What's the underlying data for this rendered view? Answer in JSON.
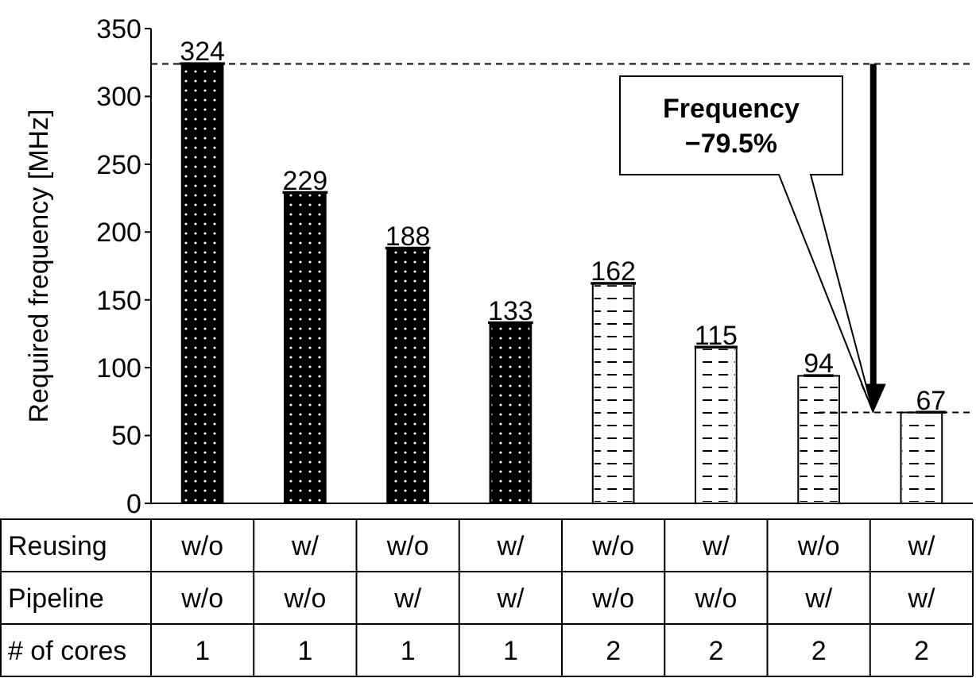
{
  "chart_data": {
    "type": "bar",
    "ylabel": "Required frequency [MHz]",
    "xlabel": "Reusing\nPipeline\n# of cores",
    "categories": [
      "w/o\nw/o\n1",
      "w/\nw/o\n1",
      "w/o\nw/\n1",
      "w/\nw/\n1",
      "w/o\nw/o\n2",
      "w/\nw/o\n2",
      "w/o\nw/\n2",
      "w/\nw/\n2"
    ],
    "values": [
      324,
      229,
      188,
      133,
      162,
      115,
      94,
      67
    ],
    "colors": [
      "#000000",
      "#000000",
      "#000000",
      "#000000",
      "#ffffff",
      "#ffffff",
      "#ffffff",
      "#ffffff"
    ],
    "ylim": [
      0,
      350
    ],
    "yticks": [
      0,
      50,
      100,
      150,
      200,
      250,
      300,
      350
    ],
    "data_labels": true,
    "ref_lines": [
      {
        "axis": "y",
        "value": 324,
        "line_style": "dashed"
      },
      {
        "axis": "y",
        "value": 67,
        "line_style": "dashed"
      }
    ],
    "annotations": [
      "Frequency\n−79.5%"
    ]
  }
}
